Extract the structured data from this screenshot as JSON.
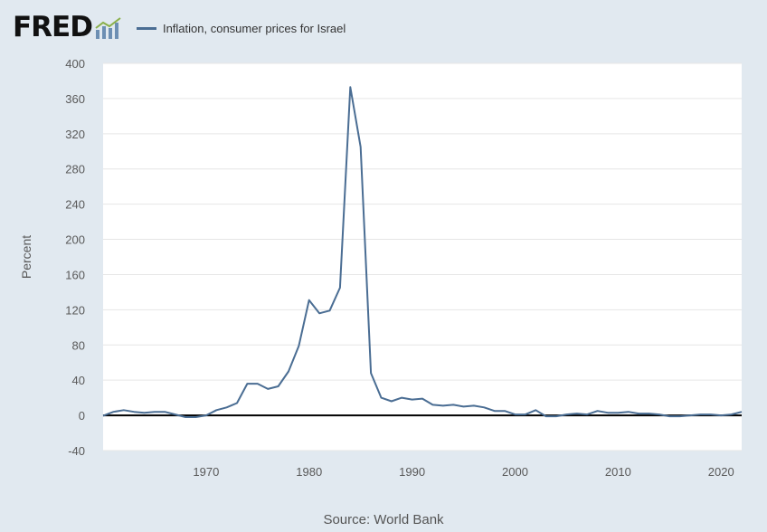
{
  "header": {
    "logo_text": "FRED",
    "logo_icon": "fred-chart-icon"
  },
  "footer": {
    "source_text": "Source: World Bank"
  },
  "colors": {
    "background": "#e1e9f0",
    "plot_background": "#ffffff",
    "series_line": "#4a6d93",
    "gridline": "#e6e6e6",
    "zero_line": "#000000"
  },
  "chart_data": {
    "type": "line",
    "title": "",
    "xlabel": "",
    "ylabel": "Percent",
    "xlim": [
      1960,
      2022
    ],
    "ylim": [
      -40,
      400
    ],
    "grid": true,
    "legend_position": "top",
    "x_ticks": [
      1970,
      1980,
      1990,
      2000,
      2010,
      2020
    ],
    "y_ticks": [
      -40,
      0,
      40,
      80,
      120,
      160,
      200,
      240,
      280,
      320,
      360,
      400
    ],
    "series": [
      {
        "name": "Inflation, consumer prices for Israel",
        "x": [
          1960,
          1961,
          1962,
          1963,
          1964,
          1965,
          1966,
          1967,
          1968,
          1969,
          1970,
          1971,
          1972,
          1973,
          1974,
          1975,
          1976,
          1977,
          1978,
          1979,
          1980,
          1981,
          1982,
          1983,
          1984,
          1985,
          1986,
          1987,
          1988,
          1989,
          1990,
          1991,
          1992,
          1993,
          1994,
          1995,
          1996,
          1997,
          1998,
          1999,
          2000,
          2001,
          2002,
          2003,
          2004,
          2005,
          2006,
          2007,
          2008,
          2009,
          2010,
          2011,
          2012,
          2013,
          2014,
          2015,
          2016,
          2017,
          2018,
          2019,
          2020,
          2021,
          2022
        ],
        "values": [
          -0.5,
          4,
          6,
          4,
          3,
          4,
          4,
          1,
          -2,
          -2,
          0,
          6,
          9,
          14,
          36,
          36,
          30,
          33,
          50,
          79,
          131,
          116,
          119,
          145,
          373,
          305,
          48,
          20,
          16,
          20,
          18,
          19,
          12,
          11,
          12,
          10,
          11,
          9,
          5,
          5,
          1,
          1,
          6,
          -1,
          -1,
          1,
          2,
          1,
          5,
          3,
          3,
          4,
          2,
          2,
          1,
          -1,
          -1,
          0,
          1,
          1,
          0,
          1,
          4
        ]
      }
    ]
  }
}
